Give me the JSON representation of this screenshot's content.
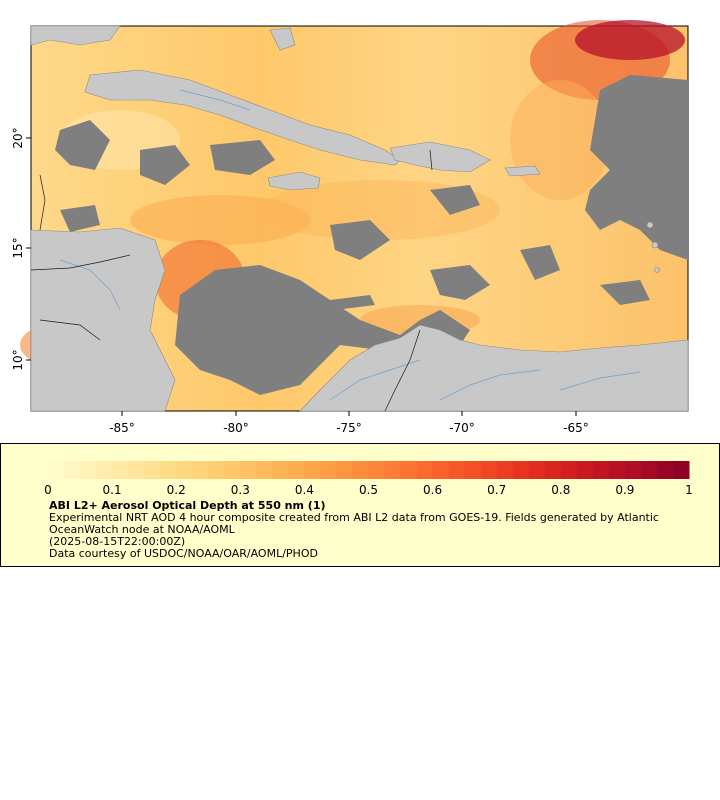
{
  "map": {
    "lon_ticks": [
      "-85°",
      "-80°",
      "-75°",
      "-70°",
      "-65°"
    ],
    "lat_ticks": [
      "20°",
      "15°",
      "10°"
    ],
    "colors": {
      "land": "#c8c8c8",
      "no_data": "#7f7f7f",
      "rivers": "#6f9fd0",
      "borders": "#1a1a1a"
    }
  },
  "legend": {
    "title": "ABI L2+ Aerosol Optical Depth at 550 nm (1)",
    "description": "Experimental NRT AOD 4 hour composite created from ABI L2 data from GOES-19. Fields generated by Atlantic OceanWatch node at NOAA/AOML",
    "timestamp": "(2025-08-15T22:00:00Z)",
    "credit": "Data courtesy of USDOC/NOAA/OAR/AOML/PHOD",
    "colorbar": {
      "min": 0,
      "max": 1,
      "ticks": [
        "0",
        "0.1",
        "0.2",
        "0.3",
        "0.4",
        "0.5",
        "0.6",
        "0.7",
        "0.8",
        "0.9",
        "1"
      ],
      "colors": [
        "#ffffcc",
        "#ffedb0",
        "#fee18f",
        "#fed076",
        "#fdbc5c",
        "#fda447",
        "#fc8a39",
        "#fc6c2f",
        "#f54d26",
        "#e3301f",
        "#cc1a20",
        "#ae0c26",
        "#8a0026"
      ]
    }
  }
}
